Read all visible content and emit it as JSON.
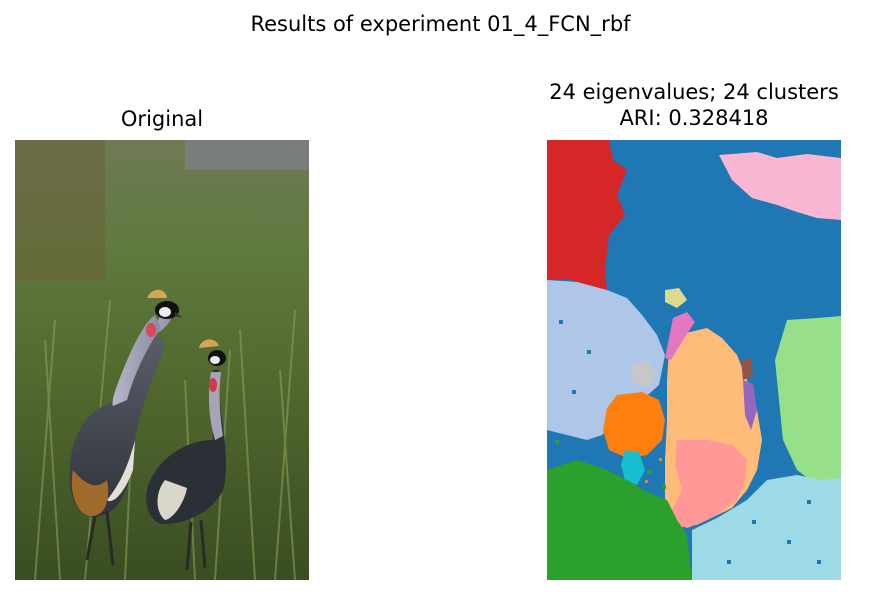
{
  "figure": {
    "suptitle": "Results of experiment 01_4_FCN_rbf"
  },
  "chart_data": [
    {
      "type": "image",
      "title": "Original",
      "axis": "off"
    },
    {
      "type": "heatmap",
      "title_line1": "24 eigenvalues; 24 clusters",
      "title_line2": "ARI: 0.328418",
      "eigenvalues": 24,
      "clusters": 24,
      "ari": 0.328418,
      "axis": "off",
      "colormap": [
        "#1f77b4",
        "#aec7e8",
        "#ff7f0e",
        "#ffbb78",
        "#2ca02c",
        "#98df8a",
        "#d62728",
        "#ff9896",
        "#9467bd",
        "#c5b0d5",
        "#8c564b",
        "#c49c94",
        "#e377c2",
        "#f7b6d2",
        "#7f7f7f",
        "#c7c7c7",
        "#bcbd22",
        "#dbdb8d",
        "#17becf",
        "#9edae5"
      ]
    }
  ]
}
